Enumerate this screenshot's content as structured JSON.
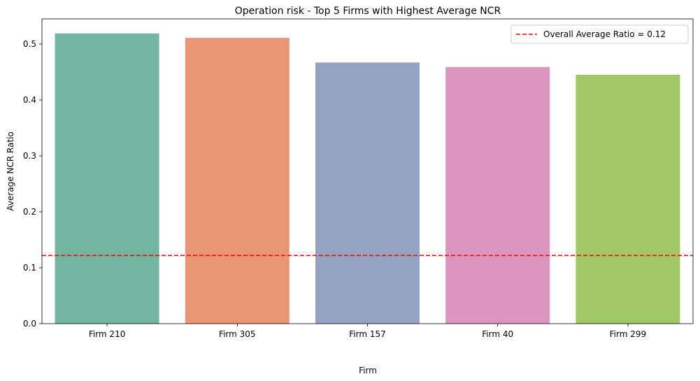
{
  "chart_data": {
    "type": "bar",
    "title": "Operation risk - Top 5 Firms with Highest Average NCR",
    "xlabel": "Firm",
    "ylabel": "Average NCR Ratio",
    "categories": [
      "Firm 210",
      "Firm 305",
      "Firm 157",
      "Firm 40",
      "Firm 299"
    ],
    "values": [
      0.519,
      0.511,
      0.467,
      0.459,
      0.445
    ],
    "colors": [
      "#72b6a1",
      "#e99675",
      "#95a3c3",
      "#db96c0",
      "#a2c865"
    ],
    "ylim": [
      0,
      0.545
    ],
    "yticks": [
      0.0,
      0.1,
      0.2,
      0.3,
      0.4,
      0.5
    ],
    "ytick_labels": [
      "0.0",
      "0.1",
      "0.2",
      "0.3",
      "0.4",
      "0.5"
    ],
    "reference_line": {
      "value": 0.122,
      "label": "Overall Average Ratio = 0.12",
      "color": "#ff0000",
      "style": "dashed"
    },
    "legend_position": "top-right",
    "grid": false
  }
}
